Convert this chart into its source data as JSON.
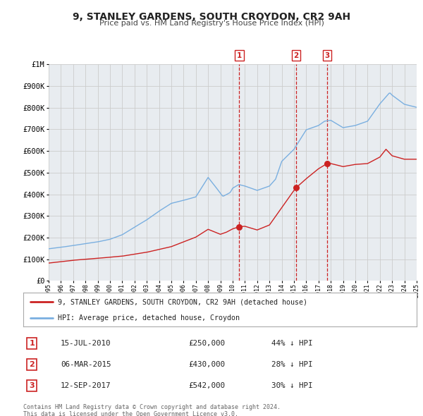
{
  "title": "9, STANLEY GARDENS, SOUTH CROYDON, CR2 9AH",
  "subtitle": "Price paid vs. HM Land Registry's House Price Index (HPI)",
  "background_color": "#ffffff",
  "plot_bg_color": "#e8ecf0",
  "red_line_label": "9, STANLEY GARDENS, SOUTH CROYDON, CR2 9AH (detached house)",
  "blue_line_label": "HPI: Average price, detached house, Croydon",
  "transactions": [
    {
      "num": 1,
      "date": "15-JUL-2010",
      "year": 2010.54,
      "price": 250000,
      "hpi_pct": "44% ↓ HPI"
    },
    {
      "num": 2,
      "date": "06-MAR-2015",
      "year": 2015.17,
      "price": 430000,
      "hpi_pct": "28% ↓ HPI"
    },
    {
      "num": 3,
      "date": "12-SEP-2017",
      "year": 2017.7,
      "price": 542000,
      "hpi_pct": "30% ↓ HPI"
    }
  ],
  "footer1": "Contains HM Land Registry data © Crown copyright and database right 2024.",
  "footer2": "This data is licensed under the Open Government Licence v3.0.",
  "ylim": [
    0,
    1000000
  ],
  "xlim_start": 1995,
  "xlim_end": 2025,
  "anchor_years_b": [
    1995,
    1996,
    1997,
    1998,
    1999,
    2000,
    2001,
    2002,
    2003,
    2004,
    2005,
    2006,
    2007,
    2008,
    2008.6,
    2009.2,
    2009.8,
    2010,
    2010.5,
    2011,
    2012,
    2013,
    2013.5,
    2014,
    2015,
    2016,
    2017,
    2017.5,
    2018,
    2019,
    2020,
    2021,
    2022,
    2022.8,
    2023,
    2024,
    2025
  ],
  "anchor_vals_b": [
    148000,
    155000,
    163000,
    172000,
    180000,
    192000,
    213000,
    248000,
    282000,
    322000,
    358000,
    372000,
    388000,
    478000,
    435000,
    390000,
    408000,
    428000,
    445000,
    438000,
    418000,
    438000,
    470000,
    552000,
    608000,
    698000,
    718000,
    738000,
    742000,
    708000,
    718000,
    738000,
    818000,
    870000,
    858000,
    816000,
    802000
  ],
  "anchor_years_r": [
    1995,
    1997,
    1999,
    2001,
    2003,
    2005,
    2007,
    2008,
    2009,
    2009.5,
    2010,
    2010.54,
    2011,
    2012,
    2013,
    2014,
    2015,
    2015.17,
    2016,
    2017,
    2017.7,
    2018,
    2019,
    2020,
    2021,
    2022,
    2022.5,
    2023,
    2024,
    2025
  ],
  "anchor_vals_r": [
    82000,
    95000,
    104000,
    114000,
    132000,
    158000,
    202000,
    238000,
    215000,
    225000,
    240000,
    250000,
    252000,
    235000,
    258000,
    338000,
    418000,
    430000,
    472000,
    518000,
    542000,
    542000,
    528000,
    538000,
    542000,
    572000,
    608000,
    578000,
    562000,
    562000
  ]
}
